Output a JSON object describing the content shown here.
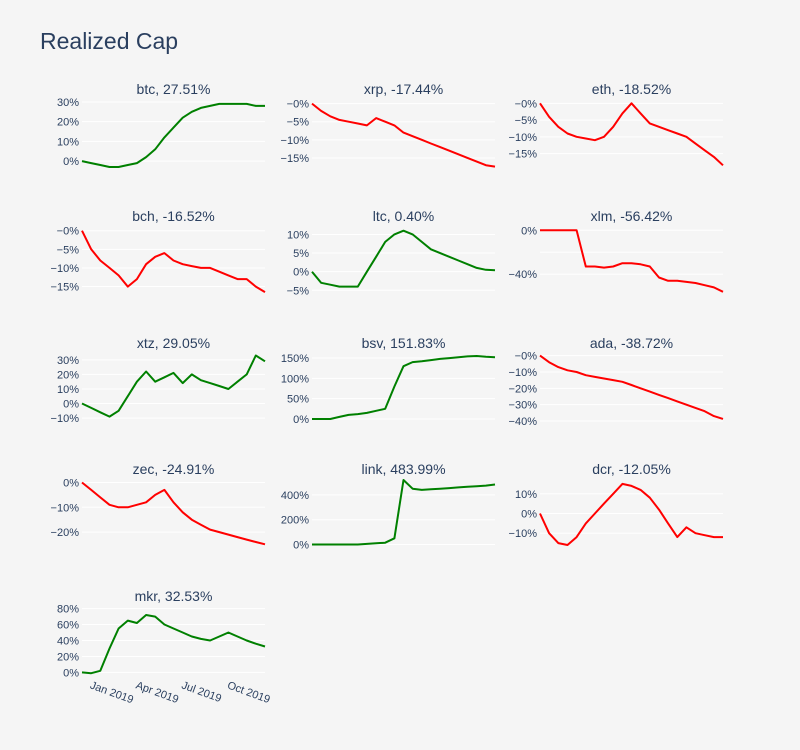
{
  "title": "Realized Cap",
  "colors": {
    "positive": "#008000",
    "negative": "#ff0000",
    "text": "#2a3f5f",
    "grid": "#ffffff",
    "background": "#f5f5f5"
  },
  "x_axis": {
    "ticks": [
      "Jan 2019",
      "Apr 2019",
      "Jul 2019",
      "Oct 2019"
    ],
    "tick_positions": [
      0.04,
      0.29,
      0.54,
      0.79
    ]
  },
  "chart_data": [
    {
      "type": "line",
      "title": "btc, 27.51%",
      "ylim": [
        -3,
        31
      ],
      "yticks": [
        0,
        10,
        20,
        30
      ],
      "ytick_labels": [
        "0%",
        "10%",
        "20%",
        "30%"
      ],
      "values": [
        0,
        -1,
        -2,
        -3,
        -3,
        -2,
        -1,
        2,
        6,
        12,
        17,
        22,
        25,
        27,
        28,
        29,
        29,
        29,
        29,
        28,
        28
      ]
    },
    {
      "type": "line",
      "title": "xrp, -17.44%",
      "ylim": [
        -17.5,
        1
      ],
      "yticks": [
        0,
        -5,
        -10,
        -15
      ],
      "ytick_labels": [
        "−0%",
        "−5%",
        "−10%",
        "−15%"
      ],
      "values": [
        0,
        -2,
        -3.5,
        -4.5,
        -5,
        -5.5,
        -6,
        -4,
        -5,
        -6,
        -8,
        -9,
        -10,
        -11,
        -12,
        -13,
        -14,
        -15,
        -16,
        -17,
        -17.4
      ]
    },
    {
      "type": "line",
      "title": "eth, -18.52%",
      "ylim": [
        -19,
        1
      ],
      "yticks": [
        0,
        -5,
        -10,
        -15
      ],
      "ytick_labels": [
        "−0%",
        "−5%",
        "−10%",
        "−15%"
      ],
      "values": [
        0,
        -4,
        -7,
        -9,
        -10,
        -10.5,
        -11,
        -10,
        -7,
        -3,
        0,
        -3,
        -6,
        -7,
        -8,
        -9,
        -10,
        -12,
        -14,
        -16,
        -18.5
      ]
    },
    {
      "type": "line",
      "title": "bch, -16.52%",
      "ylim": [
        -17,
        1
      ],
      "yticks": [
        0,
        -5,
        -10,
        -15
      ],
      "ytick_labels": [
        "−0%",
        "−5%",
        "−10%",
        "−15%"
      ],
      "values": [
        0,
        -5,
        -8,
        -10,
        -12,
        -15,
        -13,
        -9,
        -7,
        -6,
        -8,
        -9,
        -9.5,
        -10,
        -10,
        -11,
        -12,
        -13,
        -13,
        -15,
        -16.5
      ]
    },
    {
      "type": "line",
      "title": "ltc, 0.40%",
      "ylim": [
        -6,
        12
      ],
      "yticks": [
        10,
        5,
        0,
        -5
      ],
      "ytick_labels": [
        "10%",
        "5%",
        "0%",
        "−5%"
      ],
      "values": [
        0,
        -3,
        -3.5,
        -4,
        -4,
        -4,
        0,
        4,
        8,
        10,
        11,
        10,
        8,
        6,
        5,
        4,
        3,
        2,
        1,
        0.5,
        0.4
      ]
    },
    {
      "type": "line",
      "title": "xlm, -56.42%",
      "ylim": [
        -58,
        3
      ],
      "yticks": [
        0,
        -20,
        -40
      ],
      "ytick_labels": [
        "0%",
        "",
        "−40%"
      ],
      "values": [
        0,
        0,
        0,
        0,
        0,
        -33,
        -33,
        -34,
        -33,
        -30,
        -30,
        -31,
        -33,
        -43,
        -46,
        -46,
        -47,
        -48,
        -50,
        -52,
        -56
      ]
    },
    {
      "type": "line",
      "title": "xtz, 29.05%",
      "ylim": [
        -12,
        34
      ],
      "yticks": [
        30,
        20,
        10,
        0,
        -10
      ],
      "ytick_labels": [
        "30%",
        "20%",
        "10%",
        "0%",
        "−10%"
      ],
      "values": [
        0,
        -3,
        -6,
        -9,
        -5,
        5,
        15,
        22,
        15,
        18,
        21,
        14,
        20,
        16,
        14,
        12,
        10,
        15,
        20,
        33,
        29
      ]
    },
    {
      "type": "line",
      "title": "bsv, 151.83%",
      "ylim": [
        -5,
        160
      ],
      "yticks": [
        150,
        100,
        50,
        0
      ],
      "ytick_labels": [
        "150%",
        "100%",
        "50%",
        "0%"
      ],
      "values": [
        0,
        0,
        0,
        5,
        10,
        12,
        15,
        20,
        25,
        80,
        130,
        140,
        142,
        145,
        148,
        150,
        152,
        154,
        155,
        153,
        152
      ]
    },
    {
      "type": "line",
      "title": "ada, -38.72%",
      "ylim": [
        -40,
        1
      ],
      "yticks": [
        0,
        -10,
        -20,
        -30,
        -40
      ],
      "ytick_labels": [
        "−0%",
        "−10%",
        "−20%",
        "−30%",
        "−40%"
      ],
      "values": [
        0,
        -4,
        -7,
        -9,
        -10,
        -12,
        -13,
        -14,
        -15,
        -16,
        -18,
        -20,
        -22,
        -24,
        -26,
        -28,
        -30,
        -32,
        -34,
        -37,
        -38.7
      ]
    },
    {
      "type": "line",
      "title": "zec, -24.91%",
      "ylim": [
        -26,
        1
      ],
      "yticks": [
        0,
        -10,
        -20
      ],
      "ytick_labels": [
        "0%",
        "−10%",
        "−20%"
      ],
      "values": [
        0,
        -3,
        -6,
        -9,
        -10,
        -10,
        -9,
        -8,
        -5,
        -3,
        -8,
        -12,
        -15,
        -17,
        -19,
        -20,
        -21,
        -22,
        -23,
        -24,
        -24.9
      ]
    },
    {
      "type": "line",
      "title": "link, 483.99%",
      "ylim": [
        -20,
        520
      ],
      "yticks": [
        400,
        200,
        0
      ],
      "ytick_labels": [
        "400%",
        "200%",
        "0%"
      ],
      "values": [
        0,
        0,
        0,
        0,
        0,
        0,
        5,
        10,
        15,
        50,
        520,
        450,
        440,
        445,
        450,
        455,
        460,
        465,
        470,
        475,
        484
      ]
    },
    {
      "type": "line",
      "title": "dcr, -12.05%",
      "ylim": [
        -17,
        17
      ],
      "yticks": [
        10,
        0,
        -10
      ],
      "ytick_labels": [
        "10%",
        "0%",
        "−10%"
      ],
      "values": [
        0,
        -10,
        -15,
        -16,
        -12,
        -5,
        0,
        5,
        10,
        15,
        14,
        12,
        8,
        2,
        -5,
        -12,
        -7,
        -10,
        -11,
        -12,
        -12
      ]
    },
    {
      "type": "line",
      "title": "mkr, 32.53%",
      "ylim": [
        -2,
        82
      ],
      "yticks": [
        80,
        60,
        40,
        20,
        0
      ],
      "ytick_labels": [
        "80%",
        "60%",
        "40%",
        "20%",
        "0%"
      ],
      "values": [
        0,
        -1,
        2,
        30,
        55,
        65,
        62,
        72,
        70,
        60,
        55,
        50,
        45,
        42,
        40,
        45,
        50,
        45,
        40,
        36,
        32.5
      ]
    }
  ]
}
